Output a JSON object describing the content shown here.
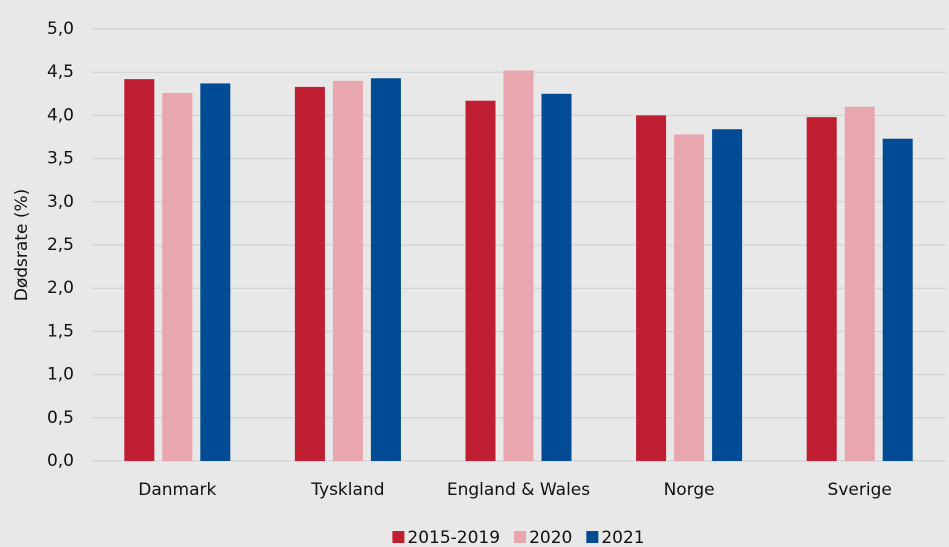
{
  "chart_data": {
    "type": "bar",
    "y_label": "Dødsrate (%)",
    "categories": [
      "Danmark",
      "Tyskland",
      "England & Wales",
      "Norge",
      "Sverige"
    ],
    "series": [
      {
        "name": "2015-2019",
        "color": "#c01f33",
        "values": [
          4.42,
          4.33,
          4.17,
          4.0,
          3.98
        ]
      },
      {
        "name": "2020",
        "color": "#e8a7ae",
        "values": [
          4.26,
          4.4,
          4.52,
          3.78,
          4.1
        ]
      },
      {
        "name": "2021",
        "color": "#004b93",
        "values": [
          4.37,
          4.43,
          4.25,
          3.84,
          3.73
        ]
      }
    ],
    "ylim": [
      0,
      5
    ],
    "yticks": [
      {
        "value": 0,
        "label": "0,0"
      },
      {
        "value": 0.5,
        "label": "0,5"
      },
      {
        "value": 1,
        "label": "1,0"
      },
      {
        "value": 1.5,
        "label": "1,5"
      },
      {
        "value": 2,
        "label": "2,0"
      },
      {
        "value": 2.5,
        "label": "2,5"
      },
      {
        "value": 3,
        "label": "3,0"
      },
      {
        "value": 3.5,
        "label": "3,5"
      },
      {
        "value": 4,
        "label": "4,0"
      },
      {
        "value": 4.5,
        "label": "4,5"
      },
      {
        "value": 5,
        "label": "5,0"
      }
    ],
    "grid": true,
    "legend": "bottom"
  }
}
